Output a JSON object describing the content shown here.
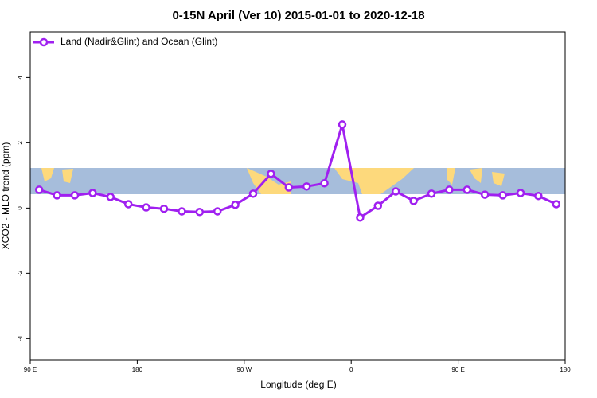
{
  "chart_data": {
    "type": "line",
    "title": "0-15N April (Ver 10)   2015-01-01 to 2020-12-18",
    "x_label": "Longitude (deg E)",
    "y_label": "XCO2 - MLO trend (ppm)",
    "xlim": [
      90,
      540
    ],
    "ylim": [
      -4.65,
      5.4
    ],
    "xticks": [
      {
        "value": 90,
        "label": "90 E"
      },
      180,
      {
        "value": 270,
        "label": "90 W"
      },
      {
        "value": 360,
        "label": "0"
      },
      {
        "value": 450,
        "label": "90 E"
      },
      {
        "value": 540,
        "label": "180"
      }
    ],
    "yticks": [
      -4,
      -2,
      0,
      2,
      4
    ],
    "legend": "top-left",
    "series": [
      {
        "name": "Land (Nadir&Glint) and Ocean (Glint)",
        "color": "#a020f0",
        "x": [
          97.5,
          112.5,
          127.5,
          142.5,
          157.5,
          172.5,
          187.5,
          202.5,
          217.5,
          232.5,
          247.5,
          262.5,
          277.5,
          292.5,
          307.5,
          322.5,
          337.5,
          352.5,
          367.5,
          382.5,
          397.5,
          412.5,
          427.5,
          442.5,
          457.5,
          472.5,
          487.5,
          502.5,
          517.5,
          532.5
        ],
        "values": [
          0.56,
          0.39,
          0.39,
          0.46,
          0.34,
          0.12,
          0.02,
          -0.02,
          -0.1,
          -0.12,
          -0.1,
          0.1,
          0.44,
          1.05,
          0.63,
          0.66,
          0.76,
          2.56,
          -0.29,
          0.07,
          0.51,
          0.22,
          0.44,
          0.56,
          0.56,
          0.41,
          0.39,
          0.46,
          0.37,
          0.12
        ]
      }
    ]
  }
}
